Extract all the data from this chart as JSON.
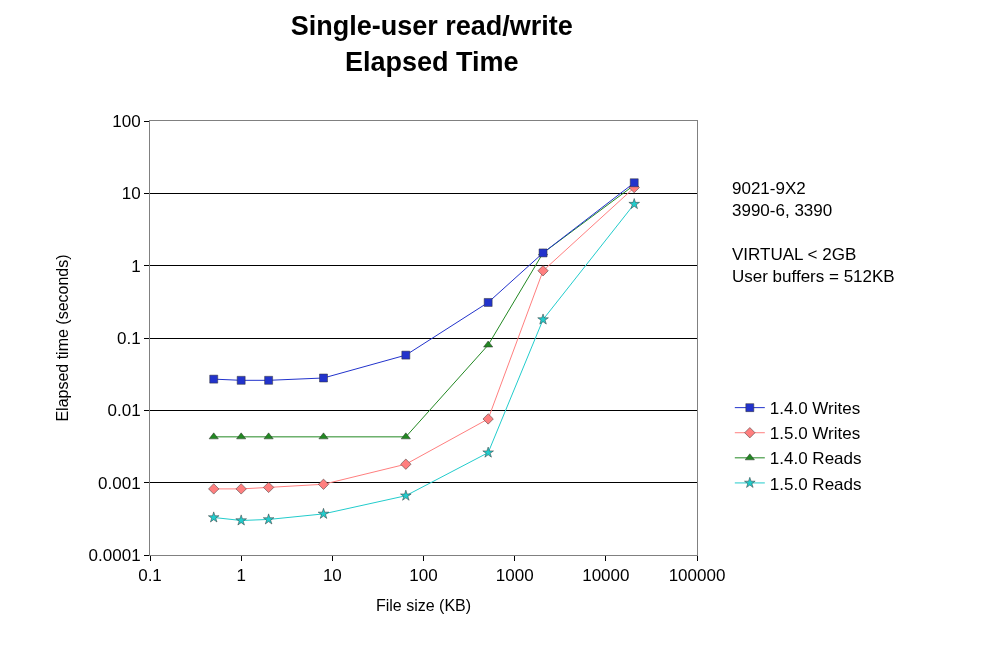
{
  "chart_data": {
    "type": "line",
    "title": "Single-user read/write\nElapsed Time",
    "xlabel": "File size (KB)",
    "ylabel": "Elapsed time (seconds)",
    "x": [
      0.5,
      1,
      2,
      8,
      64,
      512,
      2048,
      20480
    ],
    "series": [
      {
        "name": "1.4.0 Writes",
        "color": "#2233cc",
        "marker": "square",
        "values": [
          0.027,
          0.026,
          0.026,
          0.028,
          0.058,
          0.31,
          1.5,
          14
        ]
      },
      {
        "name": "1.5.0 Writes",
        "color": "#ff7f7f",
        "marker": "diamond",
        "values": [
          0.00082,
          0.00082,
          0.00086,
          0.00095,
          0.0018,
          0.0076,
          0.85,
          12
        ]
      },
      {
        "name": "1.4.0 Reads",
        "color": "#228822",
        "marker": "triangle",
        "values": [
          0.0043,
          0.0043,
          0.0043,
          0.0043,
          0.0043,
          0.08,
          1.5,
          13
        ]
      },
      {
        "name": "1.5.0 Reads",
        "color": "#22cccc",
        "marker": "star",
        "values": [
          0.00033,
          0.0003,
          0.00031,
          0.00037,
          0.00066,
          0.0026,
          0.18,
          7.1
        ]
      }
    ],
    "log": "xy",
    "xlim": [
      0.1,
      100000
    ],
    "xticks": [
      0.1,
      1,
      10,
      100,
      1000,
      10000,
      100000
    ],
    "ylim": [
      0.0001,
      100
    ],
    "yticks": [
      0.0001,
      0.001,
      0.01,
      0.1,
      1,
      10,
      100
    ],
    "grid": "y",
    "legend": "right",
    "line_style": "solid",
    "annotations": [
      "9021-9X2\n3990-6, 3390\n\nVIRTUAL < 2GB\nUser buffers = 512KB"
    ]
  }
}
